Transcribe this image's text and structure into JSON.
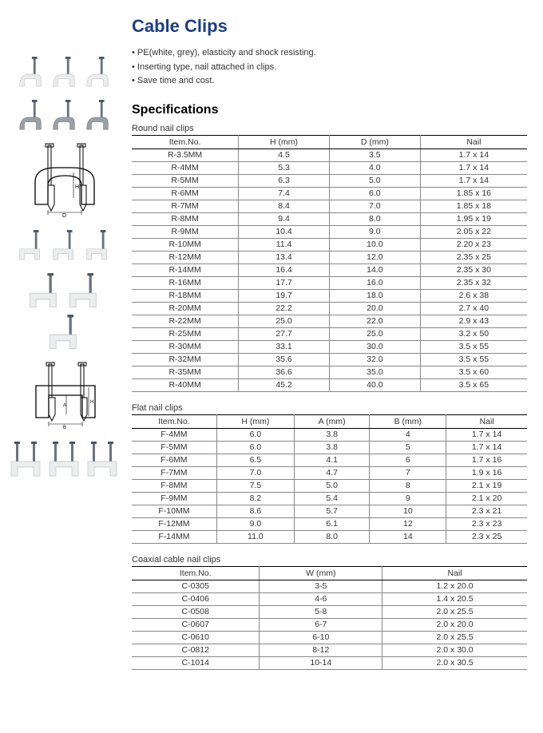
{
  "title": "Cable Clips",
  "title_color": "#1a3d8f",
  "bullets": [
    "PE(white, grey), elasticity and shock resisting.",
    "Inserting type, nail attached in clips.",
    "Save time and cost."
  ],
  "spec_heading": "Specifications",
  "tables": {
    "round": {
      "title": "Round nail clips",
      "columns": [
        "Item.No.",
        "H (mm)",
        "D (mm)",
        "Nail"
      ],
      "rows": [
        [
          "R-3.5MM",
          "4.5",
          "3.5",
          "1.7 x 14"
        ],
        [
          "R-4MM",
          "5.3",
          "4.0",
          "1.7 x 14"
        ],
        [
          "R-5MM",
          "6.3",
          "5.0",
          "1.7 x 14"
        ],
        [
          "R-6MM",
          "7.4",
          "6.0",
          "1.85 x 16"
        ],
        [
          "R-7MM",
          "8.4",
          "7.0",
          "1.85 x 18"
        ],
        [
          "R-8MM",
          "9.4",
          "8.0",
          "1.95 x 19"
        ],
        [
          "R-9MM",
          "10.4",
          "9.0",
          "2.05 x 22"
        ],
        [
          "R-10MM",
          "11.4",
          "10.0",
          "2.20 x 23"
        ],
        [
          "R-12MM",
          "13.4",
          "12.0",
          "2.35 x 25"
        ],
        [
          "R-14MM",
          "16.4",
          "14.0",
          "2.35 x 30"
        ],
        [
          "R-16MM",
          "17.7",
          "16.0",
          "2.35 x 32"
        ],
        [
          "R-18MM",
          "19.7",
          "18.0",
          "2.6 x 38"
        ],
        [
          "R-20MM",
          "22.2",
          "20.0",
          "2.7 x 40"
        ],
        [
          "R-22MM",
          "25.0",
          "22.0",
          "2.9 x 43"
        ],
        [
          "R-25MM",
          "27.7",
          "25.0",
          "3.2 x 50"
        ],
        [
          "R-30MM",
          "33.1",
          "30.0",
          "3.5 x 55"
        ],
        [
          "R-32MM",
          "35.6",
          "32.0",
          "3.5 x 55"
        ],
        [
          "R-35MM",
          "36.6",
          "35.0",
          "3.5 x 60"
        ],
        [
          "R-40MM",
          "45.2",
          "40.0",
          "3.5 x 65"
        ]
      ]
    },
    "flat": {
      "title": "Flat nail clips",
      "columns": [
        "Item.No.",
        "H (mm)",
        "A (mm)",
        "B (mm)",
        "Nail"
      ],
      "rows": [
        [
          "F-4MM",
          "6.0",
          "3.8",
          "4",
          "1.7 x 14"
        ],
        [
          "F-5MM",
          "6.0",
          "3.8",
          "5",
          "1.7 x 14"
        ],
        [
          "F-6MM",
          "6.5",
          "4.1",
          "6",
          "1.7 x 16"
        ],
        [
          "F-7MM",
          "7.0",
          "4.7",
          "7",
          "1.9 x 16"
        ],
        [
          "F-8MM",
          "7.5",
          "5.0",
          "8",
          "2.1 x 19"
        ],
        [
          "F-9MM",
          "8.2",
          "5.4",
          "9",
          "2.1 x 20"
        ],
        [
          "F-10MM",
          "8.6",
          "5.7",
          "10",
          "2.3 x 21"
        ],
        [
          "F-12MM",
          "9.0",
          "6.1",
          "12",
          "2.3 x 23"
        ],
        [
          "F-14MM",
          "11.0",
          "8.0",
          "14",
          "2.3 x 25"
        ]
      ]
    },
    "coax": {
      "title": "Coaxial cable nail clips",
      "columns": [
        "Item.No.",
        "W (mm)",
        "Nail"
      ],
      "rows": [
        [
          "C-0305",
          "3-5",
          "1.2 x 20.0"
        ],
        [
          "C-0406",
          "4-6",
          "1.4 x 20.5"
        ],
        [
          "C-0508",
          "5-8",
          "2.0 x 25.5"
        ],
        [
          "C-0607",
          "6-7",
          "2.0 x 20.0"
        ],
        [
          "C-0610",
          "6-10",
          "2.0 x 25.5"
        ],
        [
          "C-0812",
          "8-12",
          "2.0 x 30.0"
        ],
        [
          "C-1014",
          "10-14",
          "2.0 x 30.5"
        ]
      ]
    }
  },
  "clip_colors": {
    "white": "#eceded",
    "grey": "#9aa0a6",
    "nail": "#6b7280",
    "nail_head": "#4b5563",
    "outline": "#8a8f94"
  }
}
